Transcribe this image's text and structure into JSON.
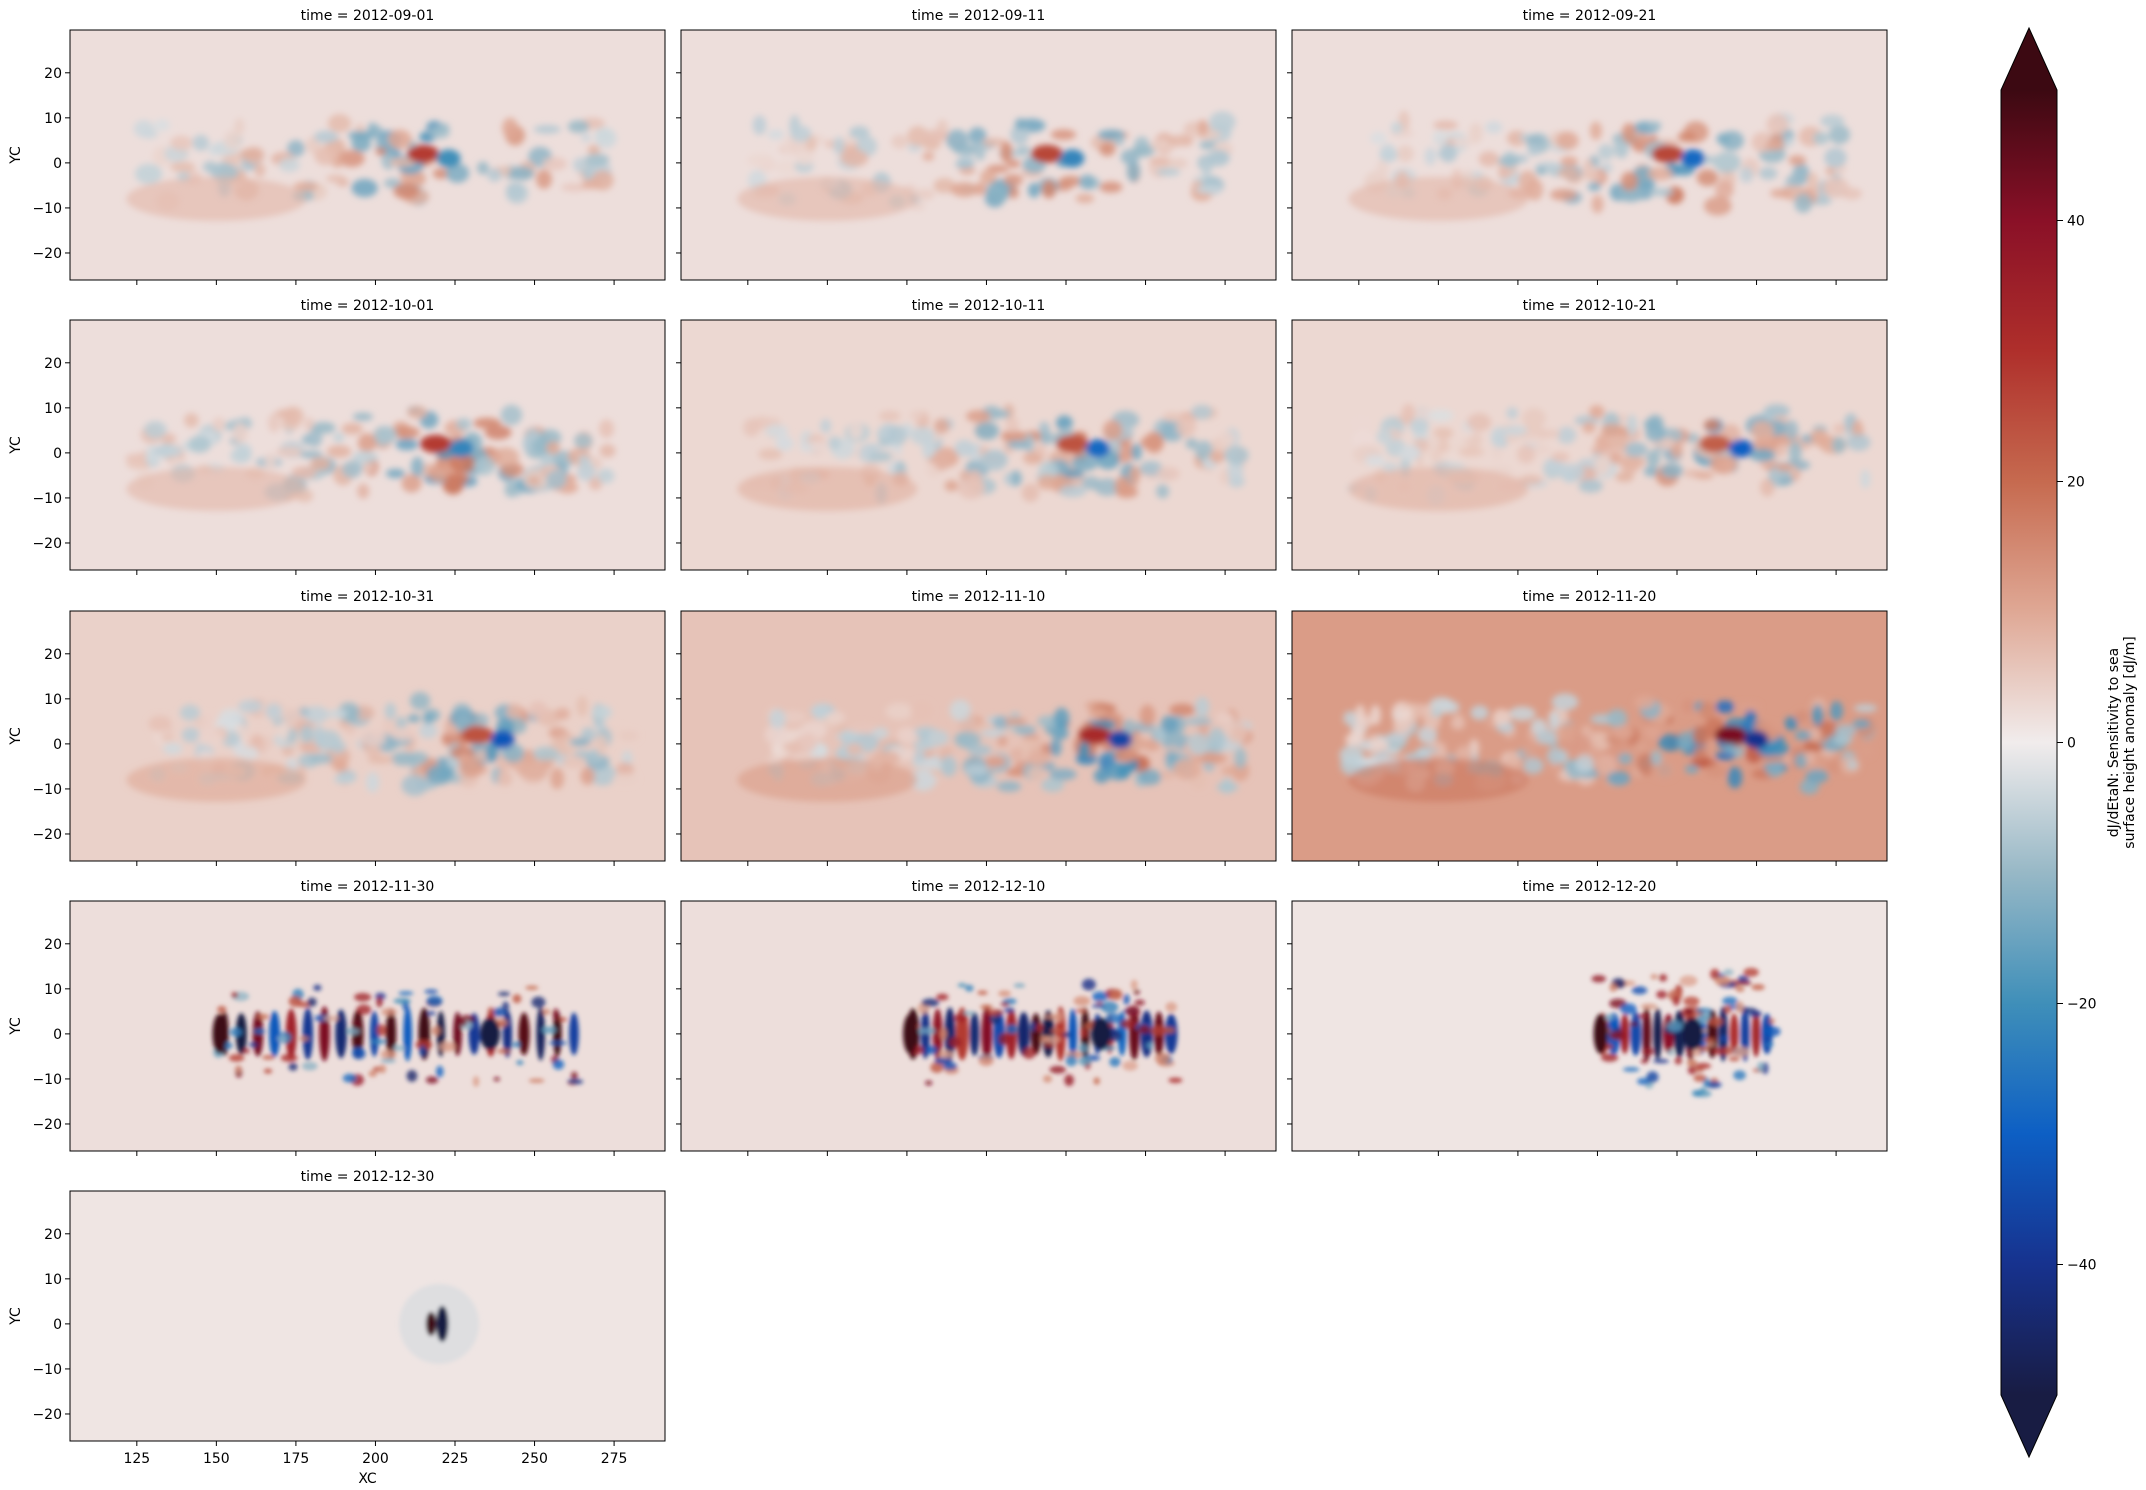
{
  "chart_data": {
    "type": "heatmap",
    "title": "",
    "facet_title_prefix": "time = ",
    "xlabel": "XC",
    "ylabel": "YC",
    "xlim": [
      104,
      291
    ],
    "ylim": [
      -26,
      29.5
    ],
    "x_ticks": [
      125,
      150,
      175,
      200,
      225,
      250,
      275
    ],
    "x_tick_labels": [
      "125",
      "150",
      "175",
      "200",
      "225",
      "250",
      "275"
    ],
    "y_ticks": [
      20,
      10,
      0,
      -10,
      -20
    ],
    "y_tick_labels": [
      "20",
      "10",
      "0",
      "−10",
      "−20"
    ],
    "grid": false,
    "colorbar": {
      "label_line1": "dJ/dEtaN: Sensitivity to sea",
      "label_line2": "surface height anomaly [dJ/m]",
      "range": [
        -50,
        50
      ],
      "extend": "both",
      "ticks": [
        40,
        20,
        0,
        -20,
        -40
      ],
      "tick_labels": [
        "40",
        "20",
        "0",
        "−20",
        "−40"
      ],
      "colormap": "balance",
      "stops": [
        {
          "v": -50,
          "color": "#181c43"
        },
        {
          "v": -40,
          "color": "#17328e"
        },
        {
          "v": -30,
          "color": "#0d5fc4"
        },
        {
          "v": -20,
          "color": "#3f8fb9"
        },
        {
          "v": -10,
          "color": "#97b8c6"
        },
        {
          "v": 0,
          "color": "#f1ecec"
        },
        {
          "v": 10,
          "color": "#dfa895"
        },
        {
          "v": 20,
          "color": "#c66a4f"
        },
        {
          "v": 30,
          "color": "#af2f2b"
        },
        {
          "v": 40,
          "color": "#8a1027"
        },
        {
          "v": 50,
          "color": "#3c0912"
        }
      ]
    },
    "panels": [
      {
        "time": "2012-09-01",
        "peak_pos": 28,
        "peak_neg": -20,
        "peak_x": 218,
        "background": 2,
        "region": [
          125,
          275
        ]
      },
      {
        "time": "2012-09-11",
        "peak_pos": 26,
        "peak_neg": -22,
        "peak_x": 222,
        "background": 2,
        "region": [
          125,
          275
        ]
      },
      {
        "time": "2012-09-21",
        "peak_pos": 26,
        "peak_neg": -28,
        "peak_x": 225,
        "background": 2,
        "region": [
          130,
          280
        ]
      },
      {
        "time": "2012-10-01",
        "peak_pos": 28,
        "peak_neg": -22,
        "peak_x": 222,
        "background": 2,
        "region": [
          125,
          275
        ]
      },
      {
        "time": "2012-10-11",
        "peak_pos": 24,
        "peak_neg": -28,
        "peak_x": 230,
        "background": 3,
        "region": [
          125,
          280
        ]
      },
      {
        "time": "2012-10-21",
        "peak_pos": 22,
        "peak_neg": -30,
        "peak_x": 240,
        "background": 3,
        "region": [
          125,
          285
        ]
      },
      {
        "time": "2012-10-31",
        "peak_pos": 24,
        "peak_neg": -32,
        "peak_x": 235,
        "background": 4,
        "region": [
          130,
          280
        ]
      },
      {
        "time": "2012-11-10",
        "peak_pos": 32,
        "peak_neg": -36,
        "peak_x": 237,
        "background": 6,
        "region": [
          130,
          280
        ]
      },
      {
        "time": "2012-11-20",
        "peak_pos": 42,
        "peak_neg": -40,
        "peak_x": 245,
        "background": 12,
        "region": [
          120,
          285
        ]
      },
      {
        "time": "2012-11-30",
        "peak_pos": 50,
        "peak_neg": -50,
        "peak_x": 236,
        "background": 2,
        "region": [
          150,
          265
        ]
      },
      {
        "time": "2012-12-10",
        "peak_pos": 50,
        "peak_neg": -50,
        "peak_x": 236,
        "background": 2,
        "region": [
          175,
          260
        ]
      },
      {
        "time": "2012-12-20",
        "peak_pos": 50,
        "peak_neg": -50,
        "peak_x": 230,
        "background": 1,
        "region": [
          200,
          255
        ]
      },
      {
        "time": "2012-12-30",
        "peak_pos": 50,
        "peak_neg": -50,
        "peak_x": 220,
        "background": 1,
        "region": [
          215,
          225
        ]
      }
    ]
  }
}
